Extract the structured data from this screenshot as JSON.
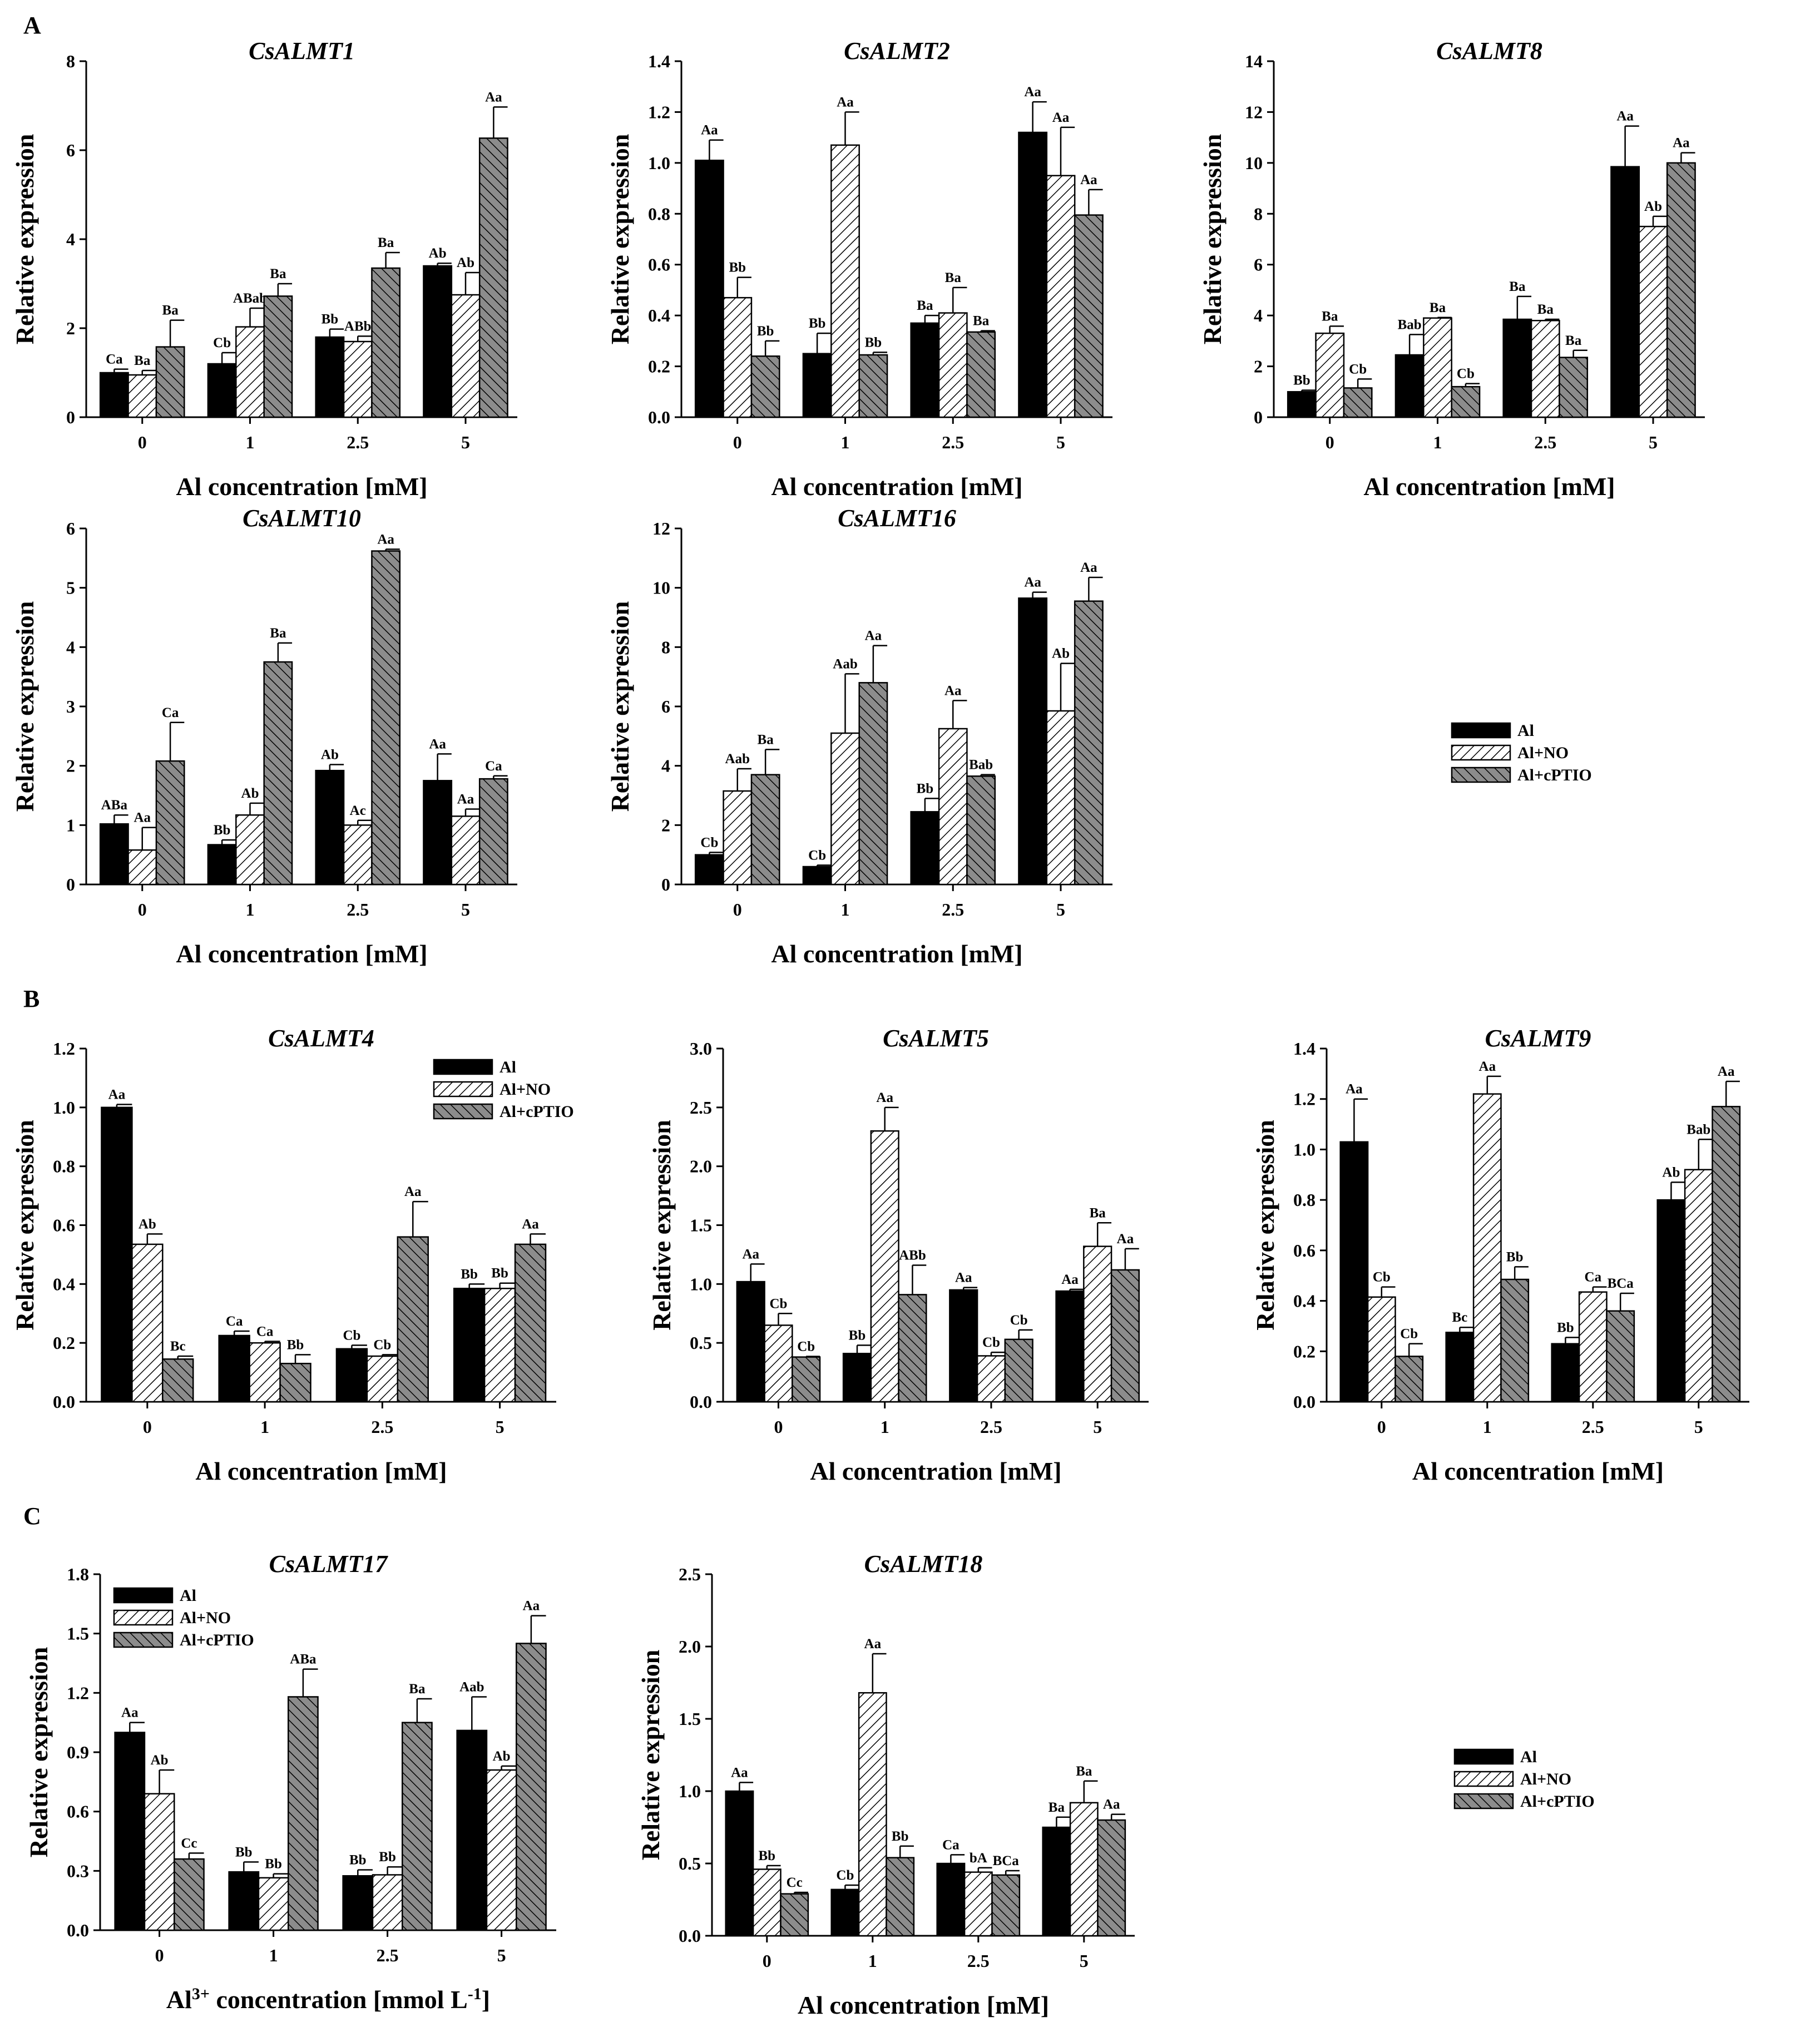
{
  "panel_letters": {
    "a": "A",
    "b": "B",
    "c": "C"
  },
  "colors": {
    "al": "#000000",
    "al_no_bg": "#ffffff",
    "al_cptio": "#8c8c8c",
    "hatch": "#000000"
  },
  "legend": {
    "labels": [
      "Al",
      "Al+NO",
      "Al+cPTIO"
    ]
  },
  "chart_data": [
    {
      "type": "bar",
      "title": "CsALMT1",
      "ylabel": "Relative expression",
      "xlabel": "Al concentration [mM]",
      "categories": [
        "0",
        "1",
        "2.5",
        "5"
      ],
      "ylim": [
        0,
        8
      ],
      "yticks": [
        "0",
        "2",
        "4",
        "6",
        "8"
      ],
      "series": [
        {
          "name": "Al",
          "values": [
            1.0,
            1.2,
            1.8,
            3.4
          ],
          "errors": [
            0.08,
            0.25,
            0.18,
            0.06
          ],
          "labels": [
            "Ca",
            "Cb",
            "Bb",
            "Ab"
          ]
        },
        {
          "name": "Al+NO",
          "values": [
            0.95,
            2.03,
            1.7,
            2.75
          ],
          "errors": [
            0.1,
            0.42,
            0.12,
            0.5
          ],
          "labels": [
            "Ba",
            "ABab",
            "ABb",
            "Ab"
          ]
        },
        {
          "name": "Al+cPTIO",
          "values": [
            1.58,
            2.72,
            3.35,
            6.27
          ],
          "errors": [
            0.6,
            0.28,
            0.35,
            0.7
          ],
          "labels": [
            "Ba",
            "Ba",
            "Ba",
            "Aa"
          ]
        }
      ]
    },
    {
      "type": "bar",
      "title": "CsALMT2",
      "ylabel": "Relative expression",
      "xlabel": "Al concentration [mM]",
      "categories": [
        "0",
        "1",
        "2.5",
        "5"
      ],
      "ylim": [
        0,
        1.4
      ],
      "yticks": [
        "0.0",
        "0.2",
        "0.4",
        "0.6",
        "0.8",
        "1.0",
        "1.2",
        "1.4"
      ],
      "series": [
        {
          "name": "Al",
          "values": [
            1.01,
            0.25,
            0.37,
            1.12
          ],
          "errors": [
            0.08,
            0.08,
            0.03,
            0.12
          ],
          "labels": [
            "Aa",
            "Bb",
            "Ba",
            "Aa"
          ]
        },
        {
          "name": "Al+NO",
          "values": [
            0.47,
            1.07,
            0.41,
            0.95
          ],
          "errors": [
            0.08,
            0.13,
            0.1,
            0.19
          ],
          "labels": [
            "Bb",
            "Aa",
            "Ba",
            "Aa"
          ]
        },
        {
          "name": "Al+cPTIO",
          "values": [
            0.24,
            0.245,
            0.335,
            0.795
          ],
          "errors": [
            0.06,
            0.01,
            0.005,
            0.1
          ],
          "labels": [
            "Bb",
            "Bb",
            "Ba",
            "Aa"
          ]
        }
      ]
    },
    {
      "type": "bar",
      "title": "CsALMT8",
      "ylabel": "Relative expression",
      "xlabel": "Al concentration [mM]",
      "categories": [
        "0",
        "1",
        "2.5",
        "5"
      ],
      "ylim": [
        0,
        14
      ],
      "yticks": [
        "0",
        "2",
        "4",
        "6",
        "8",
        "10",
        "12",
        "14"
      ],
      "series": [
        {
          "name": "Al",
          "values": [
            1.0,
            2.45,
            3.85,
            9.85
          ],
          "errors": [
            0.06,
            0.8,
            0.9,
            1.6
          ],
          "labels": [
            "Bb",
            "Bab",
            "Ba",
            "Aa"
          ]
        },
        {
          "name": "Al+NO",
          "values": [
            3.3,
            3.9,
            3.8,
            7.5
          ],
          "errors": [
            0.28,
            0.02,
            0.05,
            0.4
          ],
          "labels": [
            "Ba",
            "Ba",
            "Ba",
            "Ab"
          ]
        },
        {
          "name": "Al+cPTIO",
          "values": [
            1.15,
            1.2,
            2.35,
            10.0
          ],
          "errors": [
            0.35,
            0.12,
            0.28,
            0.4
          ],
          "labels": [
            "Cb",
            "Cb",
            "Ba",
            "Aa"
          ]
        }
      ]
    },
    {
      "type": "bar",
      "title": "CsALMT10",
      "ylabel": "Relative expression",
      "xlabel": "Al concentration [mM]",
      "categories": [
        "0",
        "1",
        "2.5",
        "5"
      ],
      "ylim": [
        0,
        6
      ],
      "yticks": [
        "0",
        "1",
        "2",
        "3",
        "4",
        "5",
        "6"
      ],
      "series": [
        {
          "name": "Al",
          "values": [
            1.02,
            0.67,
            1.92,
            1.75
          ],
          "errors": [
            0.15,
            0.08,
            0.1,
            0.45
          ],
          "labels": [
            "ABa",
            "Bb",
            "Ab",
            "Aa"
          ]
        },
        {
          "name": "Al+NO",
          "values": [
            0.58,
            1.17,
            1.0,
            1.15
          ],
          "errors": [
            0.38,
            0.2,
            0.08,
            0.12
          ],
          "labels": [
            "Aa",
            "Ab",
            "Ac",
            "Aa"
          ]
        },
        {
          "name": "Al+cPTIO",
          "values": [
            2.08,
            3.75,
            5.62,
            1.78
          ],
          "errors": [
            0.65,
            0.32,
            0.03,
            0.05
          ],
          "labels": [
            "Ca",
            "Ba",
            "Aa",
            "Ca"
          ]
        }
      ]
    },
    {
      "type": "bar",
      "title": "CsALMT16",
      "ylabel": "Relative expression",
      "xlabel": "Al concentration [mM]",
      "categories": [
        "0",
        "1",
        "2.5",
        "5"
      ],
      "ylim": [
        0,
        12
      ],
      "yticks": [
        "0",
        "2",
        "4",
        "6",
        "8",
        "10",
        "12"
      ],
      "series": [
        {
          "name": "Al",
          "values": [
            1.0,
            0.6,
            2.45,
            9.65
          ],
          "errors": [
            0.08,
            0.05,
            0.45,
            0.2
          ],
          "labels": [
            "Cb",
            "Cb",
            "Bb",
            "Aa"
          ]
        },
        {
          "name": "Al+NO",
          "values": [
            3.15,
            5.1,
            5.25,
            5.85
          ],
          "errors": [
            0.75,
            2.0,
            0.95,
            1.6
          ],
          "labels": [
            "Aab",
            "Aab",
            "Aa",
            "Ab"
          ]
        },
        {
          "name": "Al+cPTIO",
          "values": [
            3.7,
            6.8,
            3.65,
            9.55
          ],
          "errors": [
            0.85,
            1.25,
            0.05,
            0.8
          ],
          "labels": [
            "Ba",
            "Aa",
            "Bab",
            "Aa"
          ]
        }
      ]
    },
    {
      "type": "bar",
      "title": "CsALMT4",
      "ylabel": "Relative expression",
      "xlabel": "Al concentration [mM]",
      "categories": [
        "0",
        "1",
        "2.5",
        "5"
      ],
      "ylim": [
        0,
        1.2
      ],
      "yticks": [
        "0.0",
        "0.2",
        "0.4",
        "0.6",
        "0.8",
        "1.0",
        "1.2"
      ],
      "series": [
        {
          "name": "Al",
          "values": [
            1.0,
            0.225,
            0.18,
            0.385
          ],
          "errors": [
            0.01,
            0.015,
            0.012,
            0.015
          ],
          "labels": [
            "Aa",
            "Ca",
            "Cb",
            "Bb"
          ]
        },
        {
          "name": "Al+NO",
          "values": [
            0.535,
            0.2,
            0.155,
            0.385
          ],
          "errors": [
            0.035,
            0.005,
            0.005,
            0.018
          ],
          "labels": [
            "Ab",
            "Ca",
            "Cb",
            "Bb"
          ]
        },
        {
          "name": "Al+cPTIO",
          "values": [
            0.145,
            0.13,
            0.56,
            0.535
          ],
          "errors": [
            0.01,
            0.03,
            0.12,
            0.035
          ],
          "labels": [
            "Bc",
            "Bb",
            "Aa",
            "Aa"
          ]
        }
      ]
    },
    {
      "type": "bar",
      "title": "CsALMT5",
      "ylabel": "Relative expression",
      "xlabel": "Al concentration [mM]",
      "categories": [
        "0",
        "1",
        "2.5",
        "5"
      ],
      "ylim": [
        0,
        3.0
      ],
      "yticks": [
        "0.0",
        "0.5",
        "1.0",
        "1.5",
        "2.0",
        "2.5",
        "3.0"
      ],
      "series": [
        {
          "name": "Al",
          "values": [
            1.02,
            0.41,
            0.95,
            0.94
          ],
          "errors": [
            0.15,
            0.07,
            0.02,
            0.015
          ],
          "labels": [
            "Aa",
            "Bb",
            "Aa",
            "Aa"
          ]
        },
        {
          "name": "Al+NO",
          "values": [
            0.65,
            2.3,
            0.39,
            1.32
          ],
          "errors": [
            0.1,
            0.2,
            0.03,
            0.2
          ],
          "labels": [
            "Cb",
            "Aa",
            "Cb",
            "Ba"
          ]
        },
        {
          "name": "Al+cPTIO",
          "values": [
            0.38,
            0.91,
            0.53,
            1.12
          ],
          "errors": [
            0.005,
            0.25,
            0.08,
            0.18
          ],
          "labels": [
            "Cb",
            "ABb",
            "Cb",
            "Aa"
          ]
        }
      ]
    },
    {
      "type": "bar",
      "title": "CsALMT9",
      "ylabel": "Relative expression",
      "xlabel": "Al concentration [mM]",
      "categories": [
        "0",
        "1",
        "2.5",
        "5"
      ],
      "ylim": [
        0,
        1.4
      ],
      "yticks": [
        "0.0",
        "0.2",
        "0.4",
        "0.6",
        "0.8",
        "1.0",
        "1.2",
        "1.4"
      ],
      "series": [
        {
          "name": "Al",
          "values": [
            1.03,
            0.275,
            0.23,
            0.8
          ],
          "errors": [
            0.17,
            0.02,
            0.025,
            0.07
          ],
          "labels": [
            "Aa",
            "Bc",
            "Bb",
            "Ab"
          ]
        },
        {
          "name": "Al+NO",
          "values": [
            0.415,
            1.22,
            0.435,
            0.92
          ],
          "errors": [
            0.04,
            0.07,
            0.02,
            0.12
          ],
          "labels": [
            "Cb",
            "Aa",
            "Ca",
            "Bab"
          ]
        },
        {
          "name": "Al+cPTIO",
          "values": [
            0.18,
            0.485,
            0.36,
            1.17
          ],
          "errors": [
            0.05,
            0.05,
            0.07,
            0.1
          ],
          "labels": [
            "Cb",
            "Bb",
            "BCa",
            "Aa"
          ]
        }
      ]
    },
    {
      "type": "bar",
      "title": "CsALMT17",
      "ylabel": "Relative expression",
      "xlabel": "Al3+ concentration [mmol L-1]",
      "xlabel_parts": {
        "pre": "Al",
        "sup1": "3+",
        "mid": " concentration [mmol L",
        "sup2": "-1",
        "post": "]"
      },
      "categories": [
        "0",
        "1",
        "2.5",
        "5"
      ],
      "ylim": [
        0,
        1.8
      ],
      "yticks": [
        "0.0",
        "0.3",
        "0.6",
        "0.9",
        "1.2",
        "1.5",
        "1.8"
      ],
      "series": [
        {
          "name": "Al",
          "values": [
            1.0,
            0.295,
            0.275,
            1.01
          ],
          "errors": [
            0.05,
            0.05,
            0.03,
            0.17
          ],
          "labels": [
            "Aa",
            "Bb",
            "Bb",
            "Aab"
          ]
        },
        {
          "name": "Al+NO",
          "values": [
            0.69,
            0.265,
            0.28,
            0.81
          ],
          "errors": [
            0.12,
            0.02,
            0.04,
            0.02
          ],
          "labels": [
            "Ab",
            "Bb",
            "Bb",
            "Ab"
          ]
        },
        {
          "name": "Al+cPTIO",
          "values": [
            0.36,
            1.18,
            1.05,
            1.45
          ],
          "errors": [
            0.03,
            0.14,
            0.12,
            0.14
          ],
          "labels": [
            "Cc",
            "ABa",
            "Ba",
            "Aa"
          ]
        }
      ]
    },
    {
      "type": "bar",
      "title": "CsALMT18",
      "ylabel": "Relative expression",
      "xlabel": "Al concentration [mM]",
      "categories": [
        "0",
        "1",
        "2.5",
        "5"
      ],
      "ylim": [
        0,
        2.5
      ],
      "yticks": [
        "0.0",
        "0.5",
        "1.0",
        "1.5",
        "2.0",
        "2.5"
      ],
      "series": [
        {
          "name": "Al",
          "values": [
            1.0,
            0.32,
            0.5,
            0.75
          ],
          "errors": [
            0.06,
            0.03,
            0.06,
            0.07
          ],
          "labels": [
            "Aa",
            "Cb",
            "Ca",
            "Ba"
          ]
        },
        {
          "name": "Al+NO",
          "values": [
            0.46,
            1.68,
            0.44,
            0.92
          ],
          "errors": [
            0.025,
            0.27,
            0.03,
            0.15
          ],
          "labels": [
            "Bb",
            "Aa",
            "bA",
            "Ba"
          ]
        },
        {
          "name": "Al+cPTIO",
          "values": [
            0.29,
            0.54,
            0.42,
            0.8
          ],
          "errors": [
            0.01,
            0.08,
            0.03,
            0.04
          ],
          "labels": [
            "Cc",
            "Bb",
            "BCa",
            "Aa"
          ]
        }
      ]
    }
  ]
}
